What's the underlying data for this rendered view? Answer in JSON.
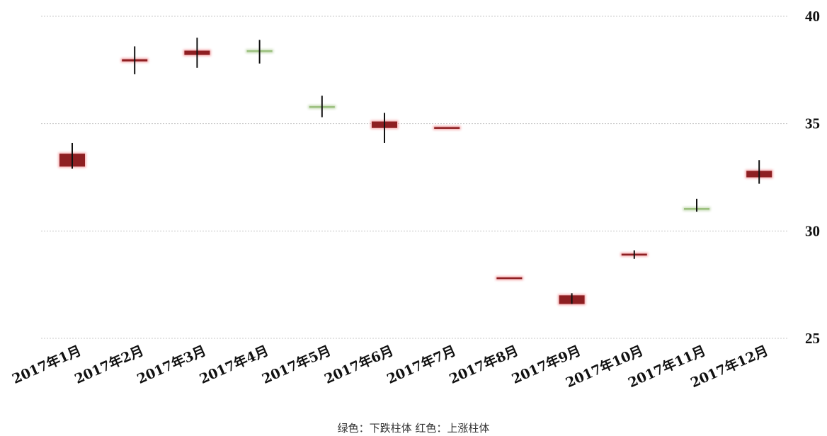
{
  "chart_data": {
    "type": "candlestick",
    "categories": [
      "2017年1月",
      "2017年2月",
      "2017年3月",
      "2017年4月",
      "2017年5月",
      "2017年6月",
      "2017年7月",
      "2017年8月",
      "2017年9月",
      "2017年10月",
      "2017年11月",
      "2017年12月"
    ],
    "candles": [
      {
        "open": 33.0,
        "close": 33.6,
        "low": 32.9,
        "high": 34.1
      },
      {
        "open": 37.9,
        "close": 38.0,
        "low": 37.3,
        "high": 38.6
      },
      {
        "open": 38.2,
        "close": 38.4,
        "low": 37.6,
        "high": 39.0
      },
      {
        "open": 38.4,
        "close": 38.35,
        "low": 37.8,
        "high": 38.9
      },
      {
        "open": 35.8,
        "close": 35.75,
        "low": 35.3,
        "high": 36.3
      },
      {
        "open": 34.8,
        "close": 35.1,
        "low": 34.1,
        "high": 35.5
      },
      {
        "open": 34.8,
        "close": 34.8,
        "low": 34.8,
        "high": 34.8
      },
      {
        "open": 27.8,
        "close": 27.8,
        "low": 27.8,
        "high": 27.8
      },
      {
        "open": 26.6,
        "close": 27.0,
        "low": 26.6,
        "high": 27.1
      },
      {
        "open": 28.9,
        "close": 28.9,
        "low": 28.7,
        "high": 29.1
      },
      {
        "open": 31.05,
        "close": 31.0,
        "low": 30.9,
        "high": 31.5
      },
      {
        "open": 32.5,
        "close": 32.8,
        "low": 32.2,
        "high": 33.3
      }
    ],
    "yticks": [
      25,
      30,
      35,
      40
    ],
    "ylim": [
      25,
      40
    ],
    "y_axis_position": "right",
    "grid": true,
    "colors": {
      "up": "#8e1f22",
      "down": "#9bc07e",
      "up_glow": "#f4a5a8",
      "down_glow": "#c9dcb8",
      "wick": "#111111",
      "grid": "#c8c8c8"
    },
    "legend_text": "绿色：下跌柱体 红色：上涨柱体",
    "legend_position": "bottom-center"
  }
}
